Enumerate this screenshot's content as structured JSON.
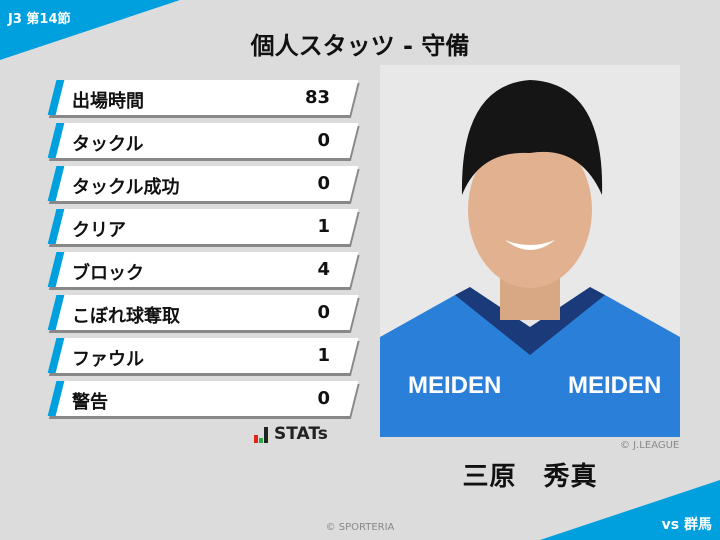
{
  "header": {
    "round": "J3 第14節",
    "title": "個人スタッツ - 守備"
  },
  "stats": [
    {
      "label": "出場時間",
      "value": "83"
    },
    {
      "label": "タックル",
      "value": "0"
    },
    {
      "label": "タックル成功",
      "value": "0"
    },
    {
      "label": "クリア",
      "value": "1"
    },
    {
      "label": "ブロック",
      "value": "4"
    },
    {
      "label": "こぼれ球奪取",
      "value": "0"
    },
    {
      "label": "ファウル",
      "value": "1"
    },
    {
      "label": "警告",
      "value": "0"
    }
  ],
  "logo": {
    "text": "STATs"
  },
  "player": {
    "name": "三原　秀真",
    "photo_credit": "© J.LEAGUE",
    "jersey_text": "MEIDEN"
  },
  "footer": {
    "opponent": "vs 群馬",
    "copyright": "© SPORTERIA"
  },
  "colors": {
    "accent": "#00a0df",
    "background": "#dcdcdc",
    "jersey": "#2a7fd8"
  }
}
